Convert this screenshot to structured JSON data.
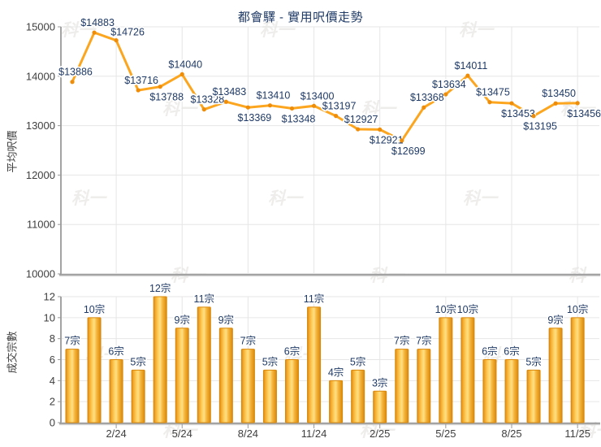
{
  "title": "都會驛 - 實用呎價走勢",
  "watermark": "科一",
  "colors": {
    "line": "#FCA51F",
    "marker": "#EF8D08",
    "bar_edge": "#D9880A",
    "bar_center": "#FFDF85",
    "label_text": "#1F3A66",
    "axis_text": "#3F3F3F",
    "grid": "#E6E6E6",
    "axis_line": "#A3A3A3",
    "tick_mark": "#999999",
    "watermark_color": "#9A948A"
  },
  "x_axis": {
    "tick_labels": [
      "2/24",
      "5/24",
      "8/24",
      "11/24",
      "2/25",
      "5/25",
      "8/25",
      "11/25"
    ],
    "tick_indices": [
      2,
      5,
      8,
      11,
      14,
      17,
      20,
      23
    ]
  },
  "chart_data": [
    {
      "type": "line",
      "title": "都會驛 - 實用呎價走勢",
      "ylabel": "平均呎價",
      "ylim": [
        10000,
        15000
      ],
      "yticks": [
        10000,
        11000,
        12000,
        13000,
        14000,
        15000
      ],
      "grid": true,
      "legend": "none",
      "values": [
        13886,
        14883,
        14726,
        13716,
        13788,
        14040,
        13328,
        13483,
        13369,
        13410,
        13348,
        13400,
        13197,
        12927,
        12921,
        12699,
        13368,
        13634,
        14011,
        13475,
        13453,
        13195,
        13450,
        13456
      ],
      "point_labels": [
        "$13886",
        "$14883",
        "$14726",
        "$13716",
        "$13788",
        "$14040",
        "$13328",
        "$13483",
        "$13369",
        "$13410",
        "$13348",
        "$13400",
        "$13197",
        "$12927",
        "$12921",
        "$12699",
        "$13368",
        "$13634",
        "$14011",
        "$13475",
        "$13453",
        "$13195",
        "$13450",
        "$13456"
      ],
      "label_placement": [
        "U",
        "U",
        "UR",
        "U",
        "D",
        "U",
        "U",
        "U",
        "D",
        "U",
        "D",
        "U",
        "U",
        "U",
        "D",
        "D",
        "U",
        "U",
        "U",
        "U",
        "D",
        "D",
        "U",
        "D"
      ]
    },
    {
      "type": "bar",
      "ylabel": "成交宗數",
      "ylim": [
        0,
        12
      ],
      "yticks": [
        0,
        2,
        4,
        6,
        8,
        10,
        12
      ],
      "grid": true,
      "legend": "none",
      "values": [
        7,
        10,
        6,
        5,
        12,
        9,
        11,
        9,
        7,
        5,
        6,
        11,
        4,
        5,
        3,
        7,
        7,
        10,
        10,
        6,
        6,
        5,
        9,
        10
      ],
      "bar_labels": [
        "7宗",
        "10宗",
        "6宗",
        "5宗",
        "12宗",
        "9宗",
        "11宗",
        "9宗",
        "7宗",
        "5宗",
        "6宗",
        "11宗",
        "4宗",
        "5宗",
        "3宗",
        "7宗",
        "7宗",
        "10宗",
        "10宗",
        "6宗",
        "6宗",
        "5宗",
        "9宗",
        "10宗"
      ]
    }
  ]
}
